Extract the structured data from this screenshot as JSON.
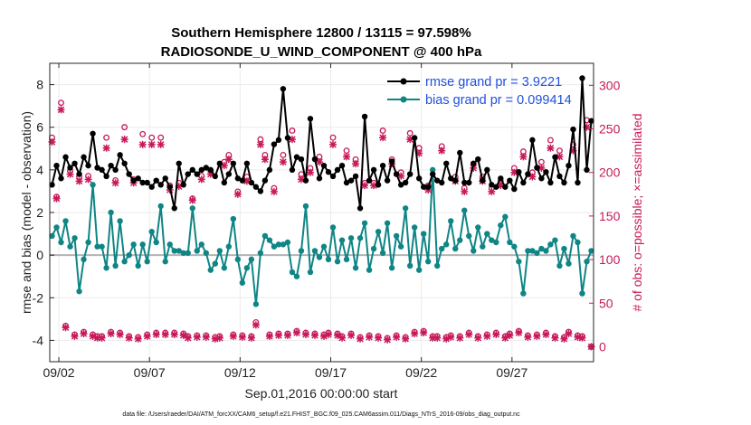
{
  "chart_data": {
    "type": "line",
    "title": "Southern Hemisphere 12800 / 13115 = 97.598%",
    "subtitle": "RADIOSONDE_U_WIND_COMPONENT @ 400 hPa",
    "xlabel": "Sep.01,2016 00:00:00 start",
    "ylabel": "rmse and bias (model - observation)",
    "y2label": "# of obs: o=possible; ×=assimilated",
    "footer": "data file: /Users/raeder/DAI/ATM_forcXX/CAM6_setup/f.e21.FHIST_BGC.f09_025.CAM6assim.011/Diags_NTrS_2016-09/obs_diag_output.nc",
    "x_range_days": [
      0.5,
      30.5
    ],
    "ylim": [
      -5,
      9
    ],
    "y2lim": [
      -17.2,
      325.3
    ],
    "yticks": [
      "-4",
      "-2",
      "0",
      "2",
      "4",
      "6",
      "8"
    ],
    "y2ticks": [
      "0",
      "50",
      "100",
      "150",
      "200",
      "250",
      "300"
    ],
    "xtick_days": [
      1,
      6,
      11,
      16,
      21,
      26
    ],
    "xtick_labels": [
      "09/02",
      "09/07",
      "09/12",
      "09/17",
      "09/22",
      "09/27"
    ],
    "grid": true,
    "legend": {
      "placement": "top-right",
      "entries": [
        "rmse grand pr = 3.9221",
        "bias grand pr = 0.099414"
      ]
    },
    "colors": {
      "rmse": "#000000",
      "bias": "#0f8585",
      "obs": "#c8195a",
      "zero_line": "#b3b3b3",
      "legend_text": "#1f4fe0"
    },
    "series": [
      {
        "name": "rmse",
        "x_days": [
          0.625,
          0.875,
          1.125,
          1.375,
          1.625,
          1.875,
          2.125,
          2.375,
          2.625,
          2.875,
          3.125,
          3.375,
          3.625,
          3.875,
          4.125,
          4.375,
          4.625,
          4.875,
          5.125,
          5.375,
          5.625,
          5.875,
          6.125,
          6.375,
          6.625,
          6.875,
          7.125,
          7.375,
          7.625,
          7.875,
          8.125,
          8.375,
          8.625,
          8.875,
          9.125,
          9.375,
          9.625,
          9.875,
          10.125,
          10.375,
          10.625,
          10.875,
          11.125,
          11.375,
          11.625,
          11.875,
          12.125,
          12.375,
          12.625,
          12.875,
          13.125,
          13.375,
          13.625,
          13.875,
          14.125,
          14.375,
          14.625,
          14.875,
          15.125,
          15.375,
          15.625,
          15.875,
          16.125,
          16.375,
          16.625,
          16.875,
          17.125,
          17.375,
          17.625,
          17.875,
          18.125,
          18.375,
          18.625,
          18.875,
          19.125,
          19.375,
          19.625,
          19.875,
          20.125,
          20.375,
          20.625,
          20.875,
          21.125,
          21.375,
          21.625,
          21.875,
          22.125,
          22.375,
          22.625,
          22.875,
          23.125,
          23.375,
          23.625,
          23.875,
          24.125,
          24.375,
          24.625,
          24.875,
          25.125,
          25.375,
          25.625,
          25.875,
          26.125,
          26.375,
          26.625,
          26.875,
          27.125,
          27.375,
          27.625,
          27.875,
          28.125,
          28.375,
          28.625,
          28.875,
          29.125,
          29.375,
          29.625,
          29.875,
          30.125,
          30.375
        ],
        "values": [
          3.3,
          4.2,
          3.6,
          4.6,
          4.1,
          4.3,
          3.8,
          4.6,
          4.2,
          5.7,
          4.1,
          4.0,
          3.7,
          4.2,
          4.0,
          4.7,
          4.3,
          3.8,
          3.5,
          3.6,
          3.4,
          3.4,
          3.2,
          3.5,
          3.3,
          3.6,
          3.2,
          2.2,
          4.3,
          3.3,
          3.8,
          4.0,
          3.8,
          4.0,
          4.1,
          4.0,
          3.7,
          4.3,
          3.4,
          3.8,
          4.3,
          3.6,
          3.5,
          4.3,
          3.4,
          3.2,
          3.0,
          3.5,
          4.0,
          5.2,
          5.4,
          7.8,
          5.5,
          4.0,
          4.6,
          4.5,
          3.5,
          6.4,
          4.5,
          3.6,
          4.2,
          3.9,
          3.7,
          4.0,
          4.2,
          3.4,
          3.5,
          3.7,
          2.2,
          6.5,
          3.5,
          4.0,
          3.3,
          4.2,
          3.5,
          4.4,
          3.8,
          3.3,
          3.4,
          3.8,
          5.5,
          3.6,
          3.2,
          3.2,
          3.8,
          3.5,
          3.4,
          4.3,
          3.6,
          3.5,
          4.8,
          3.4,
          3.4,
          4.3,
          4.5,
          3.5,
          4.0,
          3.3,
          3.2,
          3.6,
          3.2,
          3.5,
          3.1,
          3.9,
          3.4,
          3.8,
          5.4,
          4.1,
          3.6,
          3.9,
          3.4,
          4.6,
          3.7,
          3.4,
          4.2,
          5.9,
          3.4,
          8.3,
          4.0,
          6.3
        ]
      },
      {
        "name": "bias",
        "x_days": [
          0.625,
          0.875,
          1.125,
          1.375,
          1.625,
          1.875,
          2.125,
          2.375,
          2.625,
          2.875,
          3.125,
          3.375,
          3.625,
          3.875,
          4.125,
          4.375,
          4.625,
          4.875,
          5.125,
          5.375,
          5.625,
          5.875,
          6.125,
          6.375,
          6.625,
          6.875,
          7.125,
          7.375,
          7.625,
          7.875,
          8.125,
          8.375,
          8.625,
          8.875,
          9.125,
          9.375,
          9.625,
          9.875,
          10.125,
          10.375,
          10.625,
          10.875,
          11.125,
          11.375,
          11.625,
          11.875,
          12.125,
          12.375,
          12.625,
          12.875,
          13.125,
          13.375,
          13.625,
          13.875,
          14.125,
          14.375,
          14.625,
          14.875,
          15.125,
          15.375,
          15.625,
          15.875,
          16.125,
          16.375,
          16.625,
          16.875,
          17.125,
          17.375,
          17.625,
          17.875,
          18.125,
          18.375,
          18.625,
          18.875,
          19.125,
          19.375,
          19.625,
          19.875,
          20.125,
          20.375,
          20.625,
          20.875,
          21.125,
          21.375,
          21.625,
          21.875,
          22.125,
          22.375,
          22.625,
          22.875,
          23.125,
          23.375,
          23.625,
          23.875,
          24.125,
          24.375,
          24.625,
          24.875,
          25.125,
          25.375,
          25.625,
          25.875,
          26.125,
          26.375,
          26.625,
          26.875,
          27.125,
          27.375,
          27.625,
          27.875,
          28.125,
          28.375,
          28.625,
          28.875,
          29.125,
          29.375,
          29.625,
          29.875,
          30.125,
          30.375
        ],
        "values": [
          0.9,
          1.3,
          0.6,
          1.6,
          0.4,
          0.8,
          -1.7,
          -0.2,
          0.6,
          3.3,
          0.4,
          0.4,
          -0.6,
          2.0,
          -0.5,
          1.6,
          -0.3,
          0.0,
          0.5,
          -0.5,
          0.5,
          -0.3,
          1.1,
          0.6,
          2.3,
          -0.3,
          0.5,
          0.2,
          0.2,
          0.1,
          0.1,
          2.2,
          0.2,
          0.5,
          0.1,
          -0.7,
          -0.4,
          0.2,
          -0.6,
          0.4,
          1.7,
          -0.2,
          -1.3,
          -0.6,
          -0.2,
          -2.3,
          0.1,
          0.9,
          0.7,
          0.4,
          0.5,
          0.5,
          0.6,
          -0.8,
          -1.0,
          0.2,
          2.3,
          -0.8,
          0.2,
          -0.1,
          0.4,
          -0.2,
          1.3,
          -0.3,
          0.7,
          -0.2,
          0.8,
          -0.6,
          0.8,
          1.5,
          -0.7,
          0.3,
          1.1,
          0.1,
          1.5,
          -0.6,
          0.9,
          0.4,
          2.2,
          -0.5,
          1.3,
          -0.7,
          1.0,
          -0.3,
          4.0,
          -0.5,
          0.3,
          0.5,
          1.6,
          0.3,
          0.7,
          2.1,
          0.9,
          0.2,
          1.3,
          0.4,
          1.0,
          0.7,
          0.6,
          1.4,
          1.8,
          0.6,
          0.4,
          -0.3,
          -1.8,
          0.2,
          0.2,
          0.1,
          0.3,
          0.2,
          0.5,
          0.7,
          -0.5,
          0.3,
          -0.4,
          0.9,
          0.6,
          -1.8,
          -0.3,
          0.2
        ]
      },
      {
        "name": "obs possible (o)",
        "x_days": [
          0.625,
          0.875,
          1.125,
          1.375,
          1.625,
          1.875,
          2.125,
          2.375,
          2.625,
          2.875,
          3.125,
          3.375,
          3.625,
          3.875,
          4.125,
          4.375,
          4.625,
          4.875,
          5.125,
          5.375,
          5.625,
          5.875,
          6.125,
          6.375,
          6.625,
          6.875,
          7.125,
          7.375,
          7.625,
          7.875,
          8.125,
          8.375,
          8.625,
          8.875,
          9.125,
          9.375,
          9.625,
          9.875,
          10.125,
          10.375,
          10.625,
          10.875,
          11.125,
          11.375,
          11.625,
          11.875,
          12.125,
          12.375,
          12.625,
          12.875,
          13.125,
          13.375,
          13.625,
          13.875,
          14.125,
          14.375,
          14.625,
          14.875,
          15.125,
          15.375,
          15.625,
          15.875,
          16.125,
          16.375,
          16.625,
          16.875,
          17.125,
          17.375,
          17.625,
          17.875,
          18.125,
          18.375,
          18.625,
          18.875,
          19.125,
          19.375,
          19.625,
          19.875,
          20.125,
          20.375,
          20.625,
          20.875,
          21.125,
          21.375,
          21.625,
          21.875,
          22.125,
          22.375,
          22.625,
          22.875,
          23.125,
          23.375,
          23.625,
          23.875,
          24.125,
          24.375,
          24.625,
          24.875,
          25.125,
          25.375,
          25.625,
          25.875,
          26.125,
          26.375,
          26.625,
          26.875,
          27.125,
          27.375,
          27.625,
          27.875,
          28.125,
          28.375,
          28.625,
          28.875,
          29.125,
          29.375,
          29.625,
          29.875,
          30.125,
          30.375
        ],
        "values": [
          240,
          172,
          280,
          24,
          202,
          14,
          195,
          17,
          196,
          14,
          12,
          12,
          240,
          17,
          191,
          16,
          252,
          12,
          192,
          11,
          244,
          14,
          240,
          16,
          240,
          16,
          185,
          16,
          188,
          15,
          12,
          170,
          13,
          196,
          13,
          202,
          11,
          12,
          212,
          220,
          14,
          178,
          13,
          195,
          12,
          28,
          238,
          220,
          14,
          182,
          15,
          220,
          15,
          248,
          18,
          198,
          16,
          205,
          15,
          218,
          14,
          16,
          240,
          15,
          12,
          225,
          15,
          215,
          11,
          188,
          13,
          188,
          12,
          248,
          10,
          215,
          13,
          200,
          11,
          245,
          17,
          228,
          18,
          185,
          12,
          12,
          230,
          11,
          13,
          195,
          12,
          182,
          16,
          210,
          12,
          195,
          14,
          182,
          16,
          190,
          12,
          15,
          205,
          18,
          224,
          13,
          200,
          14,
          212,
          16,
          237,
          12,
          225,
          11,
          17,
          232,
          13,
          12,
          260,
          0
        ]
      },
      {
        "name": "obs assimilated (×)",
        "x_days": [
          0.625,
          0.875,
          1.125,
          1.375,
          1.625,
          1.875,
          2.125,
          2.375,
          2.625,
          2.875,
          3.125,
          3.375,
          3.625,
          3.875,
          4.125,
          4.375,
          4.625,
          4.875,
          5.125,
          5.375,
          5.625,
          5.875,
          6.125,
          6.375,
          6.625,
          6.875,
          7.125,
          7.375,
          7.625,
          7.875,
          8.125,
          8.375,
          8.625,
          8.875,
          9.125,
          9.375,
          9.625,
          9.875,
          10.125,
          10.375,
          10.625,
          10.875,
          11.125,
          11.375,
          11.625,
          11.875,
          12.125,
          12.375,
          12.625,
          12.875,
          13.125,
          13.375,
          13.625,
          13.875,
          14.125,
          14.375,
          14.625,
          14.875,
          15.125,
          15.375,
          15.625,
          15.875,
          16.125,
          16.375,
          16.625,
          16.875,
          17.125,
          17.375,
          17.625,
          17.875,
          18.125,
          18.375,
          18.625,
          18.875,
          19.125,
          19.375,
          19.625,
          19.875,
          20.125,
          20.375,
          20.625,
          20.875,
          21.125,
          21.375,
          21.625,
          21.875,
          22.125,
          22.375,
          22.625,
          22.875,
          23.125,
          23.375,
          23.625,
          23.875,
          24.125,
          24.375,
          24.625,
          24.875,
          25.125,
          25.375,
          25.625,
          25.875,
          26.125,
          26.375,
          26.625,
          26.875,
          27.125,
          27.375,
          27.625,
          27.875,
          28.125,
          28.375,
          28.625,
          28.875,
          29.125,
          29.375,
          29.625,
          29.875,
          30.125,
          30.375
        ],
        "values": [
          235,
          170,
          272,
          22,
          198,
          12,
          190,
          15,
          192,
          12,
          10,
          10,
          228,
          15,
          188,
          14,
          238,
          10,
          188,
          9,
          232,
          12,
          232,
          14,
          232,
          14,
          180,
          14,
          184,
          13,
          10,
          168,
          11,
          192,
          11,
          198,
          9,
          10,
          208,
          215,
          12,
          175,
          11,
          190,
          10,
          25,
          232,
          215,
          12,
          178,
          13,
          212,
          13,
          238,
          16,
          192,
          14,
          200,
          13,
          212,
          12,
          14,
          232,
          13,
          10,
          218,
          13,
          210,
          9,
          185,
          11,
          185,
          10,
          240,
          8,
          210,
          11,
          196,
          9,
          238,
          15,
          222,
          16,
          180,
          10,
          10,
          225,
          9,
          11,
          190,
          10,
          178,
          14,
          205,
          10,
          190,
          12,
          178,
          14,
          185,
          10,
          13,
          200,
          16,
          218,
          11,
          195,
          12,
          205,
          14,
          228,
          10,
          218,
          9,
          15,
          225,
          11,
          10,
          252,
          0
        ]
      }
    ]
  }
}
